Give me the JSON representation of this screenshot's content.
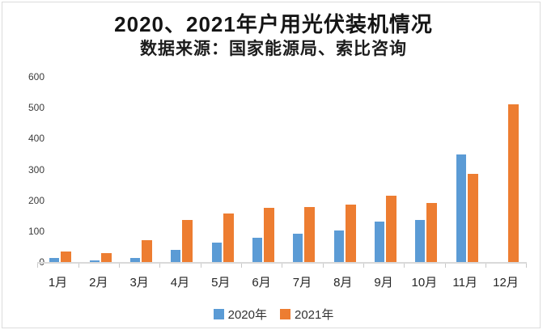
{
  "card": {
    "title": "2020、2021年户用光伏装机情况",
    "subtitle": "数据来源：国家能源局、索比咨询"
  },
  "chart_data": {
    "type": "bar",
    "title": "2020、2021年户用光伏装机情况",
    "subtitle": "数据来源：国家能源局、索比咨询",
    "categories": [
      "1月",
      "2月",
      "3月",
      "4月",
      "5月",
      "6月",
      "7月",
      "8月",
      "9月",
      "10月",
      "11月",
      "12月"
    ],
    "series": [
      {
        "name": "2020年",
        "color": "#5b9bd5",
        "values": [
          12,
          4,
          13,
          40,
          63,
          78,
          91,
          103,
          130,
          136,
          349,
          null
        ]
      },
      {
        "name": "2021年",
        "color": "#ed7d31",
        "values": [
          33,
          29,
          70,
          137,
          157,
          175,
          178,
          186,
          215,
          192,
          286,
          510
        ]
      }
    ],
    "ylim": [
      0,
      600
    ],
    "yticks": [
      0,
      100,
      200,
      300,
      400,
      500,
      600
    ],
    "grid": false,
    "legend_position": "bottom",
    "axis_color": "#d9d9d9",
    "label_color": "#333333"
  }
}
